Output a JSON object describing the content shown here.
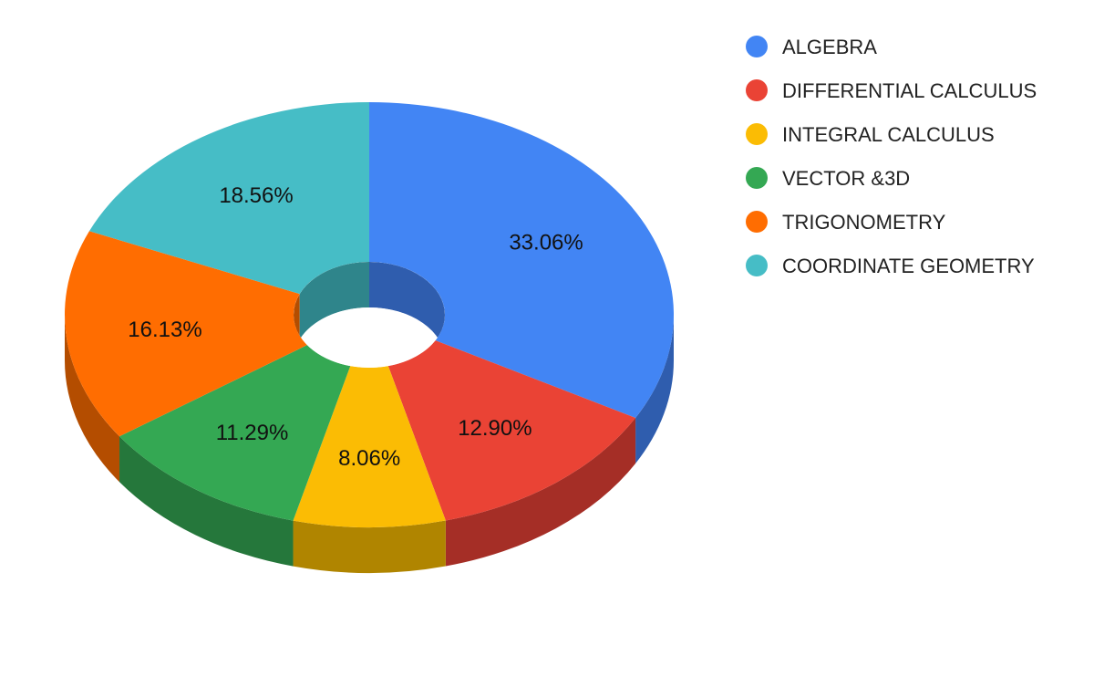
{
  "chart_data": {
    "type": "pie",
    "style": "3d-donut",
    "legend_position": "right",
    "slices": [
      {
        "label": "ALGEBRA",
        "value": 33.06,
        "value_label": "33.06%",
        "color": "#4285f4",
        "side_color": "#2f5dae"
      },
      {
        "label": "DIFFERENTIAL CALCULUS",
        "value": 12.9,
        "value_label": "12.90%",
        "color": "#ea4335",
        "side_color": "#a52e26"
      },
      {
        "label": "INTEGRAL CALCULUS",
        "value": 8.06,
        "value_label": "8.06%",
        "color": "#fbbc04",
        "side_color": "#b08500"
      },
      {
        "label": "VECTOR &3D",
        "value": 11.29,
        "value_label": "11.29%",
        "color": "#34a853",
        "side_color": "#25773b"
      },
      {
        "label": "TRIGONOMETRY",
        "value": 16.13,
        "value_label": "16.13%",
        "color": "#ff6d01",
        "side_color": "#b44d00"
      },
      {
        "label": "COORDINATE GEOMETRY",
        "value": 18.56,
        "value_label": "18.56%",
        "color": "#46bdc6",
        "side_color": "#2f858b"
      }
    ]
  }
}
